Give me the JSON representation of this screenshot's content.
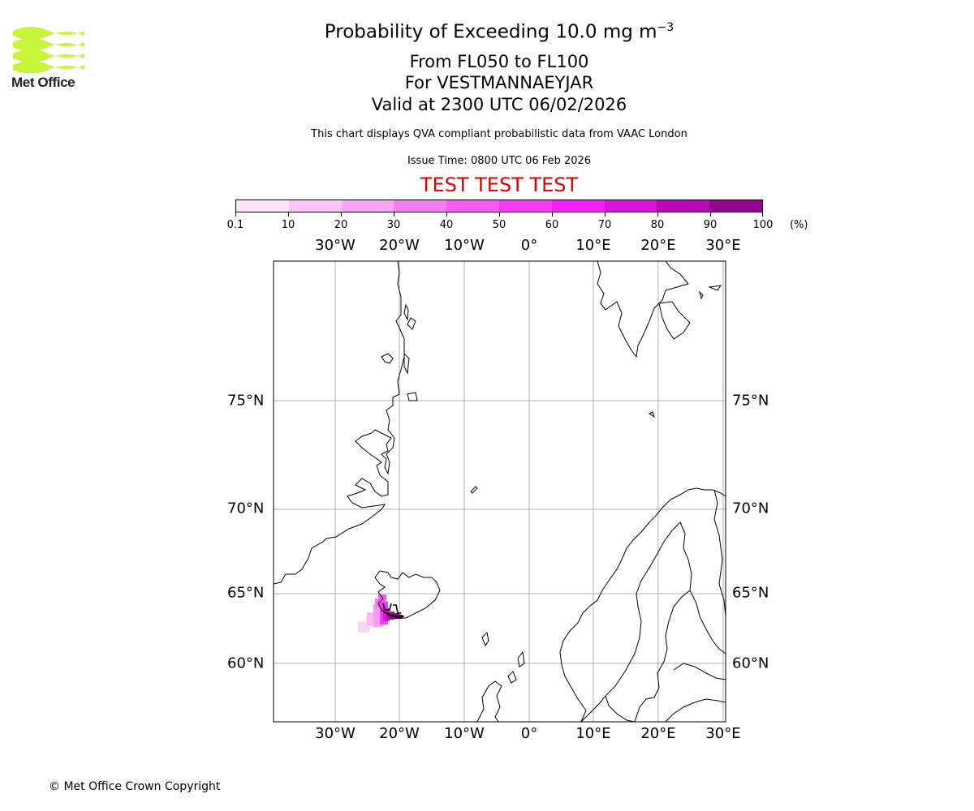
{
  "logo": {
    "text": "Met Office",
    "wave_color": "#c8f53a",
    "text_color": "#222222"
  },
  "title": {
    "main": "Probability of Exceeding 10.0 mg m",
    "main_sup": "−3",
    "levels": "From FL050 to FL100",
    "volcano": "For VESTMANNAEYJAR",
    "valid": "Valid at 2300 UTC 06/02/2026"
  },
  "subtitle": {
    "description": "This chart displays QVA compliant probabilistic data from VAAC London",
    "issue": "Issue Time: 0800 UTC 06 Feb 2026",
    "test": "TEST TEST TEST"
  },
  "colorbar": {
    "ticks": [
      "0.1",
      "10",
      "20",
      "30",
      "40",
      "50",
      "60",
      "70",
      "80",
      "90",
      "100"
    ],
    "unit": "(%)",
    "colors": [
      "#fde6fb",
      "#fac6f7",
      "#f8a6f4",
      "#f57ff2",
      "#f55cf3",
      "#f43ef4",
      "#f41ff5",
      "#d714d9",
      "#b60ab6",
      "#920592",
      "#650465"
    ]
  },
  "map": {
    "lon_labels": [
      "30°W",
      "20°W",
      "10°W",
      "0°",
      "10°E",
      "20°E",
      "30°E"
    ],
    "lat_labels": [
      "75°N",
      "70°N",
      "65°N",
      "60°N"
    ],
    "gridline_color": "#b0b0b0",
    "coast_color": "#000000"
  },
  "copyright": "© Met Office Crown Copyright"
}
